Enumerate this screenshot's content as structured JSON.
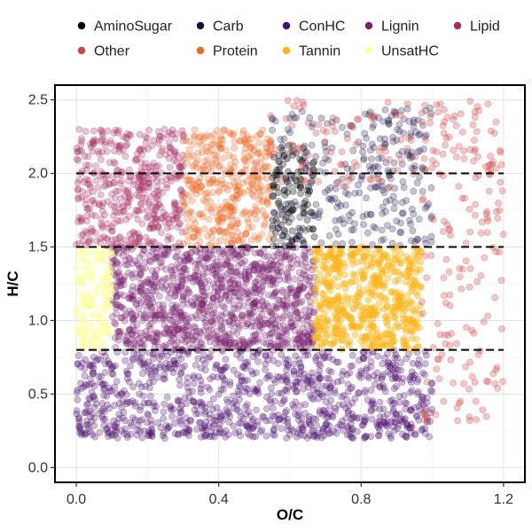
{
  "chart_data": {
    "type": "scatter",
    "xlabel": "O/C",
    "ylabel": "H/C",
    "xlim": [
      -0.06,
      1.26
    ],
    "ylim": [
      -0.1,
      2.6
    ],
    "x_ticks": [
      "0.0",
      "0.4",
      "0.8",
      "1.2"
    ],
    "x_tick_values": [
      0,
      0.4,
      0.8,
      1.2
    ],
    "y_ticks": [
      "0.0",
      "0.5",
      "1.0",
      "1.5",
      "2.0",
      "2.5"
    ],
    "y_tick_values": [
      0,
      0.5,
      1.0,
      1.5,
      2.0,
      2.5
    ],
    "grid": true,
    "legend": {
      "position": "top",
      "entries": [
        {
          "label": "AminoSugar",
          "color": "#000004"
        },
        {
          "label": "Carb",
          "color": "#1B0C42"
        },
        {
          "label": "ConHC",
          "color": "#4B0C6B"
        },
        {
          "label": "Lignin",
          "color": "#781C6D"
        },
        {
          "label": "Lipid",
          "color": "#A52C60"
        },
        {
          "label": "Other",
          "color": "#CF4446"
        },
        {
          "label": "Protein",
          "color": "#ED6925"
        },
        {
          "label": "Tannin",
          "color": "#FBB61A"
        },
        {
          "label": "UnsatHC",
          "color": "#FCFFA4"
        }
      ]
    },
    "reference_lines": [
      {
        "y": 2.0,
        "x": [
          0.0,
          1.2
        ],
        "style": "dashed"
      },
      {
        "y": 1.5,
        "x": [
          0.0,
          1.2
        ],
        "style": "dashed"
      },
      {
        "y": 0.8,
        "x": [
          0.0,
          1.2
        ],
        "style": "dashed"
      }
    ],
    "series": [
      {
        "name": "Carb",
        "color": "#1B0C42",
        "region": {
          "x": [
            0.55,
            1.0
          ],
          "y": [
            1.5,
            2.45
          ]
        }
      },
      {
        "name": "ConHC",
        "color": "#4B0C6B",
        "region": {
          "x": [
            0.0,
            1.0
          ],
          "y": [
            0.2,
            0.8
          ]
        }
      },
      {
        "name": "Lipid",
        "color": "#A52C60",
        "region": {
          "x": [
            0.0,
            0.3
          ],
          "y": [
            1.5,
            2.3
          ]
        }
      },
      {
        "name": "Protein",
        "color": "#ED6925",
        "region": {
          "x": [
            0.3,
            0.55
          ],
          "y": [
            1.5,
            2.3
          ]
        }
      },
      {
        "name": "AminoSugar",
        "color": "#000004",
        "region": {
          "x": [
            0.55,
            0.67
          ],
          "y": [
            1.5,
            2.2
          ]
        }
      },
      {
        "name": "Lignin",
        "color": "#781C6D",
        "region": {
          "x": [
            0.1,
            0.67
          ],
          "y": [
            0.8,
            1.5
          ]
        }
      },
      {
        "name": "Tannin",
        "color": "#FBB61A",
        "region": {
          "x": [
            0.67,
            0.97
          ],
          "y": [
            0.8,
            1.5
          ]
        }
      },
      {
        "name": "UnsatHC",
        "color": "#FCFFA4",
        "region": {
          "x": [
            0.0,
            0.1
          ],
          "y": [
            0.8,
            1.5
          ]
        }
      },
      {
        "name": "Other",
        "color": "#CF4446",
        "region": {
          "x": [
            0.5,
            1.2
          ],
          "y": [
            0.3,
            2.5
          ]
        }
      }
    ]
  }
}
